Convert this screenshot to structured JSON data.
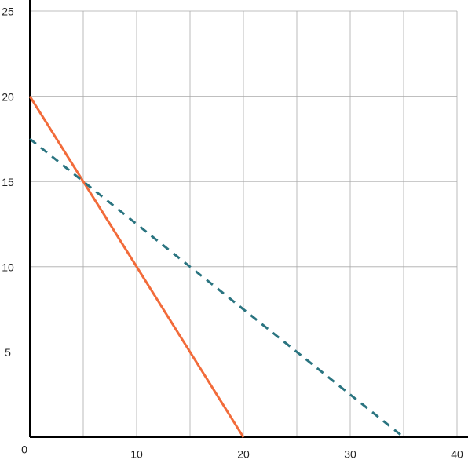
{
  "chart_data": {
    "type": "line",
    "xlim": [
      0,
      40
    ],
    "ylim": [
      0,
      25
    ],
    "xticks": [
      0,
      {
        "value": 5,
        "label": null
      },
      10,
      {
        "value": 15,
        "label": null
      },
      20,
      {
        "value": 25,
        "label": null
      },
      30,
      {
        "value": 35,
        "label": null
      },
      40
    ],
    "yticks": [
      5,
      10,
      15,
      20,
      25
    ],
    "grid": true,
    "series": [
      {
        "x": [
          0,
          20
        ],
        "values": [
          20,
          0
        ],
        "color": "#f26b3a",
        "dash": false
      },
      {
        "x": [
          0,
          35
        ],
        "values": [
          17.5,
          0
        ],
        "color": "#2a7480",
        "dash": true
      }
    ]
  }
}
